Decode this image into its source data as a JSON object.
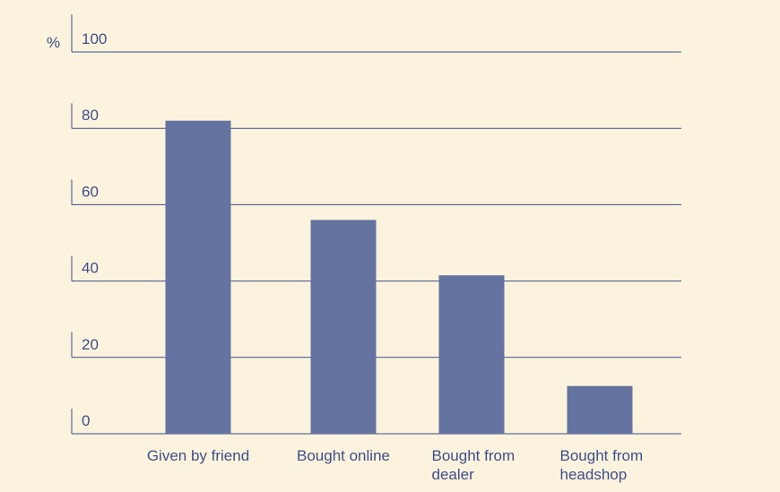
{
  "colors": {
    "background": "#fbf3de",
    "bar": "#64739f",
    "text": "#3d4e8a",
    "gridline": "#3d4e8a"
  },
  "chart_data": {
    "type": "bar",
    "title": "",
    "xlabel": "",
    "ylabel": "%",
    "ylim": [
      0,
      100
    ],
    "yticks": [
      "0",
      "20",
      "40",
      "60",
      "80",
      "100"
    ],
    "grid": true,
    "categories": [
      [
        "Given by friend"
      ],
      [
        "Bought online"
      ],
      [
        "Bought from",
        "dealer"
      ],
      [
        "Bought from",
        "headshop"
      ]
    ],
    "values": [
      82,
      56,
      41.5,
      12.5
    ]
  }
}
